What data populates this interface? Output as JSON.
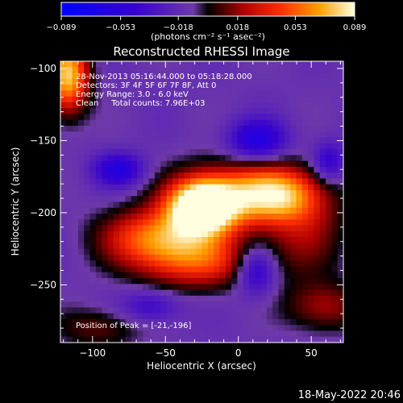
{
  "chart_data": {
    "type": "heatmap",
    "title": "Reconstructed RHESSI Image",
    "xlabel": "Heliocentric X (arcsec)",
    "ylabel": "Heliocentric Y (arcsec)",
    "xlim": [
      -122,
      72
    ],
    "ylim": [
      -290,
      -95
    ],
    "x_ticks": [
      -100,
      -50,
      0,
      50
    ],
    "x_tick_labels": [
      "−100",
      "−50",
      "0",
      "50"
    ],
    "y_ticks": [
      -100,
      -150,
      -200,
      -250
    ],
    "y_tick_labels": [
      "−100",
      "−150",
      "−200",
      "−250"
    ],
    "colorbar": {
      "range": [
        -0.089,
        0.089
      ],
      "ticks": [
        -0.089,
        -0.053,
        -0.018,
        0.018,
        0.053,
        0.089
      ],
      "tick_labels": [
        "−0.089",
        "−0.053",
        "−0.018",
        "0.018",
        "0.053",
        "0.089"
      ],
      "unit_label": "(photons cm⁻² s⁻¹ asec⁻²)"
    },
    "annotations": [
      "28-Nov-2013 05:16:44.000 to 05:18:28.000",
      "Detectors: 3F 4F 5F 6F 7F 8F, Att 0",
      "Energy Range: 3.0 - 6.0 keV",
      "Clean     Total counts: 7.96E+03"
    ],
    "peak_label": "Position of Peak = [-21,-196]",
    "peak": [
      -21,
      -196
    ],
    "sources": [
      {
        "x": -25,
        "y": -196,
        "sx": 16,
        "sy": 13,
        "amp": 0.115
      },
      {
        "x": 0,
        "y": -188,
        "sx": 28,
        "sy": 16,
        "amp": 0.06
      },
      {
        "x": 30,
        "y": -187,
        "sx": 20,
        "sy": 13,
        "amp": 0.055
      },
      {
        "x": -55,
        "y": -217,
        "sx": 26,
        "sy": 14,
        "amp": 0.07
      },
      {
        "x": -25,
        "y": -235,
        "sx": 30,
        "sy": 13,
        "amp": 0.05
      },
      {
        "x": 45,
        "y": -212,
        "sx": 20,
        "sy": 22,
        "amp": 0.03
      },
      {
        "x": -117,
        "y": -105,
        "sx": 10,
        "sy": 18,
        "amp": 0.09
      },
      {
        "x": 58,
        "y": -265,
        "sx": 18,
        "sy": 12,
        "amp": 0.035
      },
      {
        "x": -95,
        "y": -280,
        "sx": 20,
        "sy": 10,
        "amp": 0.025
      },
      {
        "x": -82,
        "y": -170,
        "sx": 12,
        "sy": 8,
        "amp": -0.045
      },
      {
        "x": 13,
        "y": -150,
        "sx": 14,
        "sy": 10,
        "amp": -0.05
      },
      {
        "x": 12,
        "y": -240,
        "sx": 10,
        "sy": 12,
        "amp": -0.05
      },
      {
        "x": 62,
        "y": -165,
        "sx": 8,
        "sy": 10,
        "amp": -0.035
      },
      {
        "x": -60,
        "y": -265,
        "sx": 14,
        "sy": 8,
        "amp": -0.03
      }
    ]
  },
  "footer_timestamp": "18-May-2022 20:46"
}
